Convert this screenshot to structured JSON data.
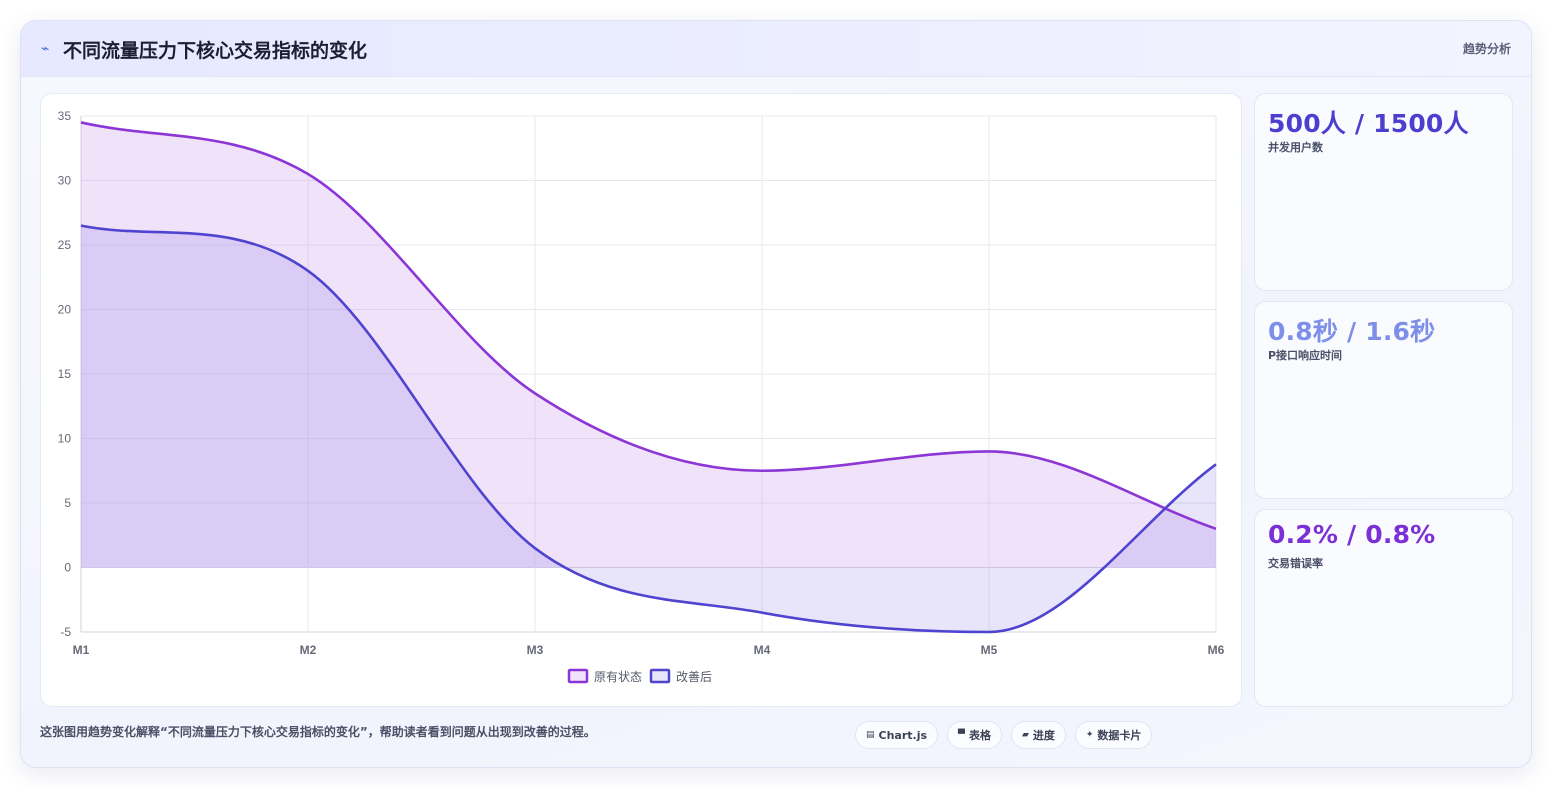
{
  "header": {
    "icon": "trend-icon",
    "icon_glyph": "⌁",
    "title": "不同流量压力下核心交易指标的变化",
    "tag": "趋势分析"
  },
  "stats": [
    {
      "value": "500人 / 1500人",
      "label": "并发用户数",
      "color": "#4c3fcf"
    },
    {
      "value": "0.8秒 / 1.6秒",
      "label": "P接口响应时间",
      "color": "#7d8fe8"
    },
    {
      "value": "0.2% / 0.8%",
      "label": "交易错误率",
      "color": "#7d2fd6"
    }
  ],
  "footer": {
    "description": "这张图用趋势变化解释“不同流量压力下核心交易指标的变化”，帮助读者看到问题从出现到改善的过程。",
    "chips": [
      {
        "icon": "chart-icon",
        "glyph": "▤",
        "label": "Chart.js"
      },
      {
        "icon": "table-icon",
        "glyph": "▀",
        "label": "表格"
      },
      {
        "icon": "progress-icon",
        "glyph": "▰",
        "label": "进度"
      },
      {
        "icon": "sparkle-icon",
        "glyph": "✦",
        "label": "数据卡片"
      }
    ]
  },
  "chart_data": {
    "type": "area",
    "x": [
      "M1",
      "M2",
      "M3",
      "M4",
      "M5",
      "M6"
    ],
    "ylim": [
      -5,
      35
    ],
    "yticks": [
      -5,
      0,
      5,
      10,
      15,
      20,
      25,
      30,
      35
    ],
    "grid": true,
    "legend_position": "bottom",
    "series": [
      {
        "name": "原有状态",
        "values": [
          34.5,
          30.5,
          13.5,
          7.5,
          9,
          3
        ],
        "color": "#8c36d6",
        "fill": "rgba(205,165,235,0.32)"
      },
      {
        "name": "改善后",
        "values": [
          26.5,
          23,
          1.5,
          -3.5,
          -5,
          8
        ],
        "color": "#4f44cf",
        "fill": "rgba(140,120,230,0.20)"
      }
    ]
  }
}
